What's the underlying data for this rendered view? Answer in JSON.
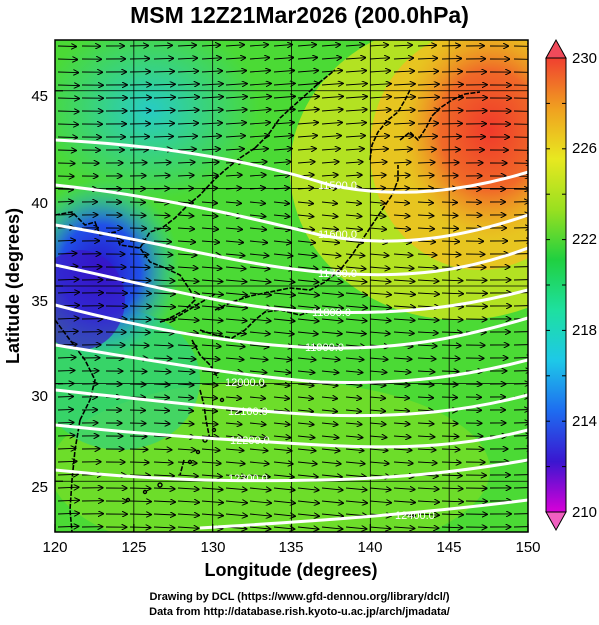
{
  "title": "MSM 12Z21Mar2026 (200.0hPa)",
  "xlabel": "Longitude (degrees)",
  "ylabel": "Latitude  (degrees)",
  "credits": {
    "line1": "Drawing by DCL (https://www.gfd-dennou.org/library/dcl/)",
    "line2": "Data from http://database.rish.kyoto-u.ac.jp/arch/jmadata/"
  },
  "map": {
    "lon_range": [
      120,
      150
    ],
    "lat_range": [
      22.4,
      47.6
    ],
    "lon_ticks": [
      "120",
      "125",
      "130",
      "135",
      "140",
      "145",
      "150"
    ],
    "lat_ticks": [
      "25",
      "30",
      "35",
      "40",
      "45"
    ],
    "gridlines": true
  },
  "colorbar": {
    "ticks": [
      "230",
      "226",
      "222",
      "218",
      "214",
      "210"
    ],
    "range": [
      210,
      230
    ],
    "colors": [
      "#d800d8",
      "#3a16d0",
      "#1e6cf0",
      "#1ec8e8",
      "#1ee0a0",
      "#20d040",
      "#9ae020",
      "#e8e820",
      "#f0a020",
      "#f04030"
    ]
  },
  "contours": {
    "color": "#ffffff",
    "labels": [
      "11500.0",
      "11600.0",
      "11700.0",
      "11800.0",
      "11900.0",
      "12000.0",
      "12100.0",
      "12200.0",
      "12300.0",
      "12400.0"
    ]
  },
  "wind": {
    "direction": "westerly",
    "arrow_color": "#000000"
  }
}
